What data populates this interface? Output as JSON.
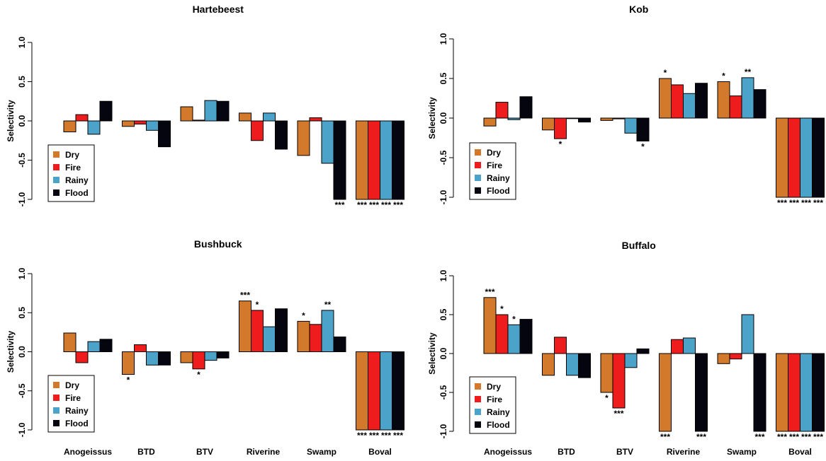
{
  "chart_data": [
    {
      "type": "bar",
      "title": "Hartebeest",
      "y_label": "Selectivity",
      "legend": "bottom-left",
      "categories": [
        null,
        null,
        null,
        null,
        null,
        null
      ],
      "ylim": [
        -1,
        1
      ],
      "yticks": [
        {
          "value": -1,
          "label": "-1.0"
        },
        -0.5,
        {
          "value": 0,
          "label": "0.0"
        },
        0.5,
        {
          "value": 1,
          "label": "1.0"
        }
      ],
      "series": [
        {
          "name": "Dry",
          "color": "#d2792b",
          "values": [
            -0.14,
            -0.07,
            0.18,
            0.1,
            -0.44,
            -1
          ],
          "signif": [
            null,
            null,
            null,
            null,
            null,
            "***"
          ]
        },
        {
          "name": "Fire",
          "color": "#ee1c1c",
          "values": [
            0.08,
            -0.04,
            0.01,
            -0.25,
            0.04,
            -1
          ],
          "signif": [
            null,
            null,
            null,
            null,
            null,
            "***"
          ]
        },
        {
          "name": "Rainy",
          "color": "#4ba3c9",
          "values": [
            -0.17,
            -0.12,
            0.26,
            0.1,
            -0.54,
            -1
          ],
          "signif": [
            null,
            null,
            null,
            null,
            null,
            "***"
          ]
        },
        {
          "name": "Flood",
          "color": "#050510",
          "values": [
            0.25,
            -0.33,
            0.25,
            -0.36,
            -1,
            -1
          ],
          "signif": [
            null,
            null,
            null,
            null,
            "***",
            "***"
          ]
        }
      ]
    },
    {
      "type": "bar",
      "title": "Kob",
      "y_label": "Selectivity",
      "legend": "bottom-left",
      "categories": [
        null,
        null,
        null,
        null,
        null,
        null
      ],
      "ylim": [
        -1,
        1
      ],
      "yticks": [
        {
          "value": -1,
          "label": "-1.0"
        },
        -0.5,
        {
          "value": 0,
          "label": "0.0"
        },
        0.5,
        {
          "value": 1,
          "label": "1.0"
        }
      ],
      "series": [
        {
          "name": "Dry",
          "color": "#d2792b",
          "values": [
            -0.1,
            -0.15,
            -0.03,
            0.5,
            0.46,
            -1
          ],
          "signif": [
            null,
            null,
            null,
            "*",
            "*",
            "***"
          ]
        },
        {
          "name": "Fire",
          "color": "#ee1c1c",
          "values": [
            0.2,
            -0.26,
            -0.01,
            0.42,
            0.28,
            -1
          ],
          "signif": [
            null,
            "*",
            null,
            null,
            null,
            "***"
          ]
        },
        {
          "name": "Rainy",
          "color": "#4ba3c9",
          "values": [
            -0.02,
            0.0,
            -0.19,
            0.31,
            0.51,
            -1
          ],
          "signif": [
            null,
            null,
            null,
            null,
            "**",
            "***"
          ]
        },
        {
          "name": "Flood",
          "color": "#050510",
          "values": [
            0.27,
            -0.05,
            -0.29,
            0.44,
            0.36,
            -1
          ],
          "signif": [
            null,
            null,
            "*",
            null,
            null,
            "***"
          ]
        }
      ]
    },
    {
      "type": "bar",
      "title": "Bushbuck",
      "y_label": "Selectivity",
      "legend": "bottom-left",
      "categories": [
        "Anogeissus",
        "BTD",
        "BTV",
        "Riverine",
        "Swamp",
        "Boval"
      ],
      "ylim": [
        -1,
        1
      ],
      "yticks": [
        {
          "value": -1,
          "label": "-1.0"
        },
        -0.5,
        {
          "value": 0,
          "label": "0.0"
        },
        0.5,
        {
          "value": 1,
          "label": "1.0"
        }
      ],
      "series": [
        {
          "name": "Dry",
          "color": "#d2792b",
          "values": [
            0.24,
            -0.29,
            -0.14,
            0.65,
            0.39,
            -1
          ],
          "signif": [
            null,
            "*",
            null,
            "***",
            "*",
            "***"
          ]
        },
        {
          "name": "Fire",
          "color": "#ee1c1c",
          "values": [
            -0.14,
            0.09,
            -0.22,
            0.53,
            0.35,
            -1
          ],
          "signif": [
            null,
            null,
            "*",
            "*",
            null,
            "***"
          ]
        },
        {
          "name": "Rainy",
          "color": "#4ba3c9",
          "values": [
            0.13,
            -0.17,
            -0.11,
            0.32,
            0.53,
            -1
          ],
          "signif": [
            null,
            null,
            null,
            null,
            "**",
            "***"
          ]
        },
        {
          "name": "Flood",
          "color": "#050510",
          "values": [
            0.16,
            -0.17,
            -0.08,
            0.55,
            0.19,
            -1
          ],
          "signif": [
            null,
            null,
            null,
            null,
            null,
            "***"
          ]
        }
      ]
    },
    {
      "type": "bar",
      "title": "Buffalo",
      "y_label": "Selectivity",
      "legend": "bottom-left",
      "categories": [
        "Anogeissus",
        "BTD",
        "BTV",
        "Riverine",
        "Swamp",
        "Boval"
      ],
      "ylim": [
        -1,
        1
      ],
      "yticks": [
        {
          "value": -1,
          "label": "-1.0"
        },
        -0.5,
        {
          "value": 0,
          "label": "0.0"
        },
        0.5,
        {
          "value": 1,
          "label": "1.0"
        }
      ],
      "series": [
        {
          "name": "Dry",
          "color": "#d2792b",
          "values": [
            0.72,
            -0.28,
            -0.5,
            -1,
            -0.13,
            -1
          ],
          "signif": [
            "***",
            null,
            "*",
            "***",
            null,
            "***"
          ]
        },
        {
          "name": "Fire",
          "color": "#ee1c1c",
          "values": [
            0.5,
            0.21,
            -0.7,
            0.18,
            -0.07,
            -1
          ],
          "signif": [
            "*",
            null,
            "***",
            null,
            null,
            "***"
          ]
        },
        {
          "name": "Rainy",
          "color": "#4ba3c9",
          "values": [
            0.37,
            -0.28,
            -0.18,
            0.2,
            0.5,
            -1
          ],
          "signif": [
            "*",
            null,
            null,
            null,
            null,
            "***"
          ]
        },
        {
          "name": "Flood",
          "color": "#050510",
          "values": [
            0.44,
            -0.31,
            0.06,
            -1,
            -1,
            -1
          ],
          "signif": [
            null,
            null,
            null,
            "***",
            "***",
            "***"
          ]
        }
      ]
    }
  ]
}
